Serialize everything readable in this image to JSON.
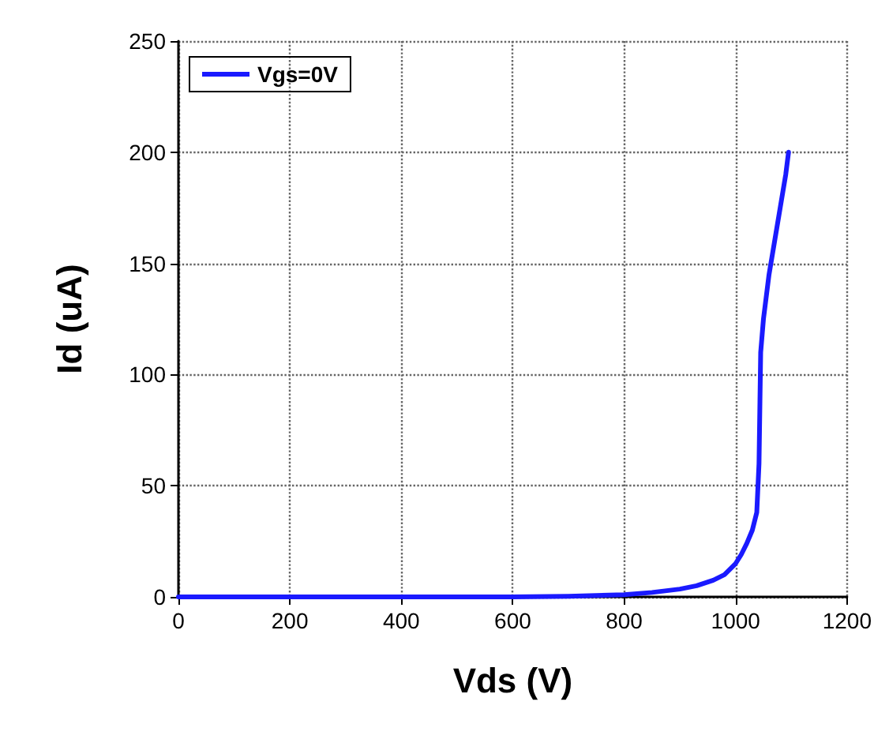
{
  "chart_data": {
    "type": "line",
    "xlabel": "Vds (V)",
    "ylabel": "Id (uA)",
    "xlim": [
      0,
      1200
    ],
    "xticks": [
      0,
      200,
      400,
      600,
      800,
      1000,
      1200
    ],
    "ylim": [
      0,
      250
    ],
    "yticks": [
      0,
      50,
      100,
      150,
      200,
      250
    ],
    "grid": true,
    "legend": "top left",
    "line_style": "solid",
    "marker": "none",
    "series": [
      {
        "name": "Vgs=0V",
        "color": "#1a1aff",
        "x": [
          0,
          200,
          400,
          600,
          700,
          750,
          800,
          850,
          900,
          930,
          960,
          980,
          1000,
          1010,
          1020,
          1030,
          1038,
          1042,
          1045,
          1050,
          1060,
          1070,
          1080,
          1090,
          1095
        ],
        "values": [
          0,
          0,
          0,
          0,
          0.3,
          0.6,
          1,
          2,
          3.5,
          5,
          7.5,
          10,
          15,
          19,
          24,
          30,
          38,
          60,
          110,
          125,
          145,
          160,
          175,
          190,
          200
        ]
      }
    ]
  }
}
